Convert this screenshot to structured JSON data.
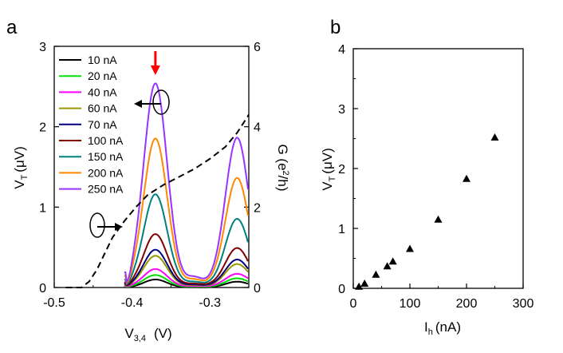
{
  "chart_data": [
    {
      "panel": "a",
      "type": "line",
      "xlabel_main": "V",
      "xlabel_sub": "3,4",
      "xlabel_unit": "(V)",
      "ylabel_main": "V",
      "ylabel_sub": "T",
      "ylabel_unit": "(μV)",
      "y2label_main": "G (e",
      "y2label_sup": "2",
      "y2label_unit": "/h)",
      "xlim": [
        -0.5,
        -0.25
      ],
      "ylim": [
        0,
        3
      ],
      "y2lim": [
        0,
        6
      ],
      "x_ticks": [
        -0.5,
        -0.4,
        -0.3
      ],
      "x_tick_labels": [
        "-0.5",
        "-0.4",
        "-0.3"
      ],
      "y_ticks": [
        0,
        1,
        2,
        3
      ],
      "y_tick_labels": [
        "0",
        "1",
        "2",
        "3"
      ],
      "y2_ticks": [
        0,
        2,
        4,
        6
      ],
      "y2_tick_labels": [
        "0",
        "2",
        "4",
        "6"
      ],
      "series": [
        {
          "name": "10 nA",
          "color": "#000000",
          "amp": 0.1
        },
        {
          "name": "20 nA",
          "color": "#00dd00",
          "amp": 0.15
        },
        {
          "name": "40 nA",
          "color": "#ff00ff",
          "amp": 0.22
        },
        {
          "name": "60 nA",
          "color": "#999900",
          "amp": 0.38
        },
        {
          "name": "70 nA",
          "color": "#000080",
          "amp": 0.45
        },
        {
          "name": "100 nA",
          "color": "#800000",
          "amp": 0.64
        },
        {
          "name": "150 nA",
          "color": "#008080",
          "amp": 1.13
        },
        {
          "name": "200 nA",
          "color": "#ff8800",
          "amp": 1.82
        },
        {
          "name": "250 nA",
          "color": "#9933ff",
          "amp": 2.5
        }
      ],
      "conductance_curve": {
        "name": "G",
        "style": "dashed",
        "x": [
          -0.485,
          -0.465,
          -0.455,
          -0.445,
          -0.435,
          -0.425,
          -0.41,
          -0.395,
          -0.38,
          -0.36,
          -0.34,
          -0.32,
          -0.3,
          -0.28,
          -0.265,
          -0.25
        ],
        "y": [
          0.0,
          0.0,
          0.15,
          0.45,
          0.85,
          1.25,
          1.65,
          2.0,
          2.3,
          2.55,
          2.75,
          2.95,
          3.2,
          3.5,
          3.85,
          4.3
        ]
      },
      "annotations": {
        "red_arrow_x": -0.37,
        "left_oval_arrow": "points left to V_T axis",
        "right_oval_arrow": "points right to G axis"
      }
    },
    {
      "panel": "b",
      "type": "scatter",
      "xlabel_main": "I",
      "xlabel_sub": "h",
      "xlabel_unit": "(nA)",
      "ylabel_main": "V",
      "ylabel_sub": "T",
      "ylabel_unit": "(μV)",
      "xlim": [
        0,
        300
      ],
      "ylim": [
        0,
        4
      ],
      "x_ticks": [
        0,
        100,
        200,
        300
      ],
      "x_tick_labels": [
        "0",
        "100",
        "200",
        "300"
      ],
      "y_ticks": [
        0,
        1,
        2,
        3,
        4
      ],
      "y_tick_labels": [
        "0",
        "1",
        "2",
        "3",
        "4"
      ],
      "x": [
        10,
        20,
        40,
        60,
        70,
        100,
        150,
        200,
        250
      ],
      "y": [
        0.03,
        0.08,
        0.23,
        0.37,
        0.45,
        0.66,
        1.15,
        1.83,
        2.52
      ]
    }
  ]
}
